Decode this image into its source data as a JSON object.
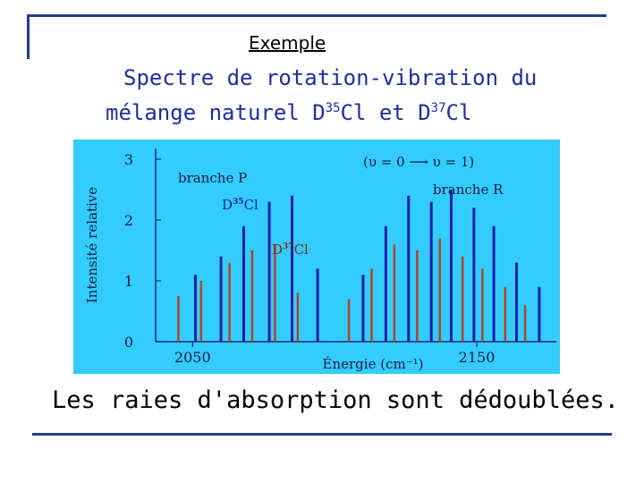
{
  "page": {
    "subtitle": "Exemple",
    "title_line1": "Spectre de rotation-vibration du",
    "title_line2_prefix": "mélange naturel  D",
    "title_iso1": "35",
    "title_line2_mid": "Cl  et  D",
    "title_iso2": "37",
    "title_line2_suffix": "Cl",
    "caption": "Les raies d'absorption sont dédoublées."
  },
  "colors": {
    "background": "#33ccff",
    "d35_lines": "#1a1fa8",
    "d37_lines": "#b04428",
    "axis": "#1a2a70",
    "title": "#1f2f9a",
    "frame": "#1f3d8a"
  },
  "chart_data": {
    "type": "bar",
    "ylabel": "Intensité relative",
    "xlabel": "Énergie (cm⁻¹)",
    "xlim": [
      2037,
      2178
    ],
    "ylim": [
      0,
      3
    ],
    "yticks": [
      "0",
      "1",
      "2",
      "3"
    ],
    "xticks": [
      "2050",
      "2150"
    ],
    "annotation_transition": "(υ = 0 ⟶ υ = 1)",
    "label_branch_p": "branche P",
    "label_branch_r": "branche R",
    "label_d35_base": "D",
    "label_d35_iso": "35",
    "label_d35_elem": "Cl",
    "label_d37_base": "D",
    "label_d37_iso": "37",
    "label_d37_elem": "Cl",
    "series": [
      {
        "name": "D35Cl",
        "x": [
          2051,
          2060,
          2068,
          2077,
          2085,
          2094,
          2110,
          2118,
          2126,
          2134,
          2141,
          2149,
          2156,
          2164,
          2172
        ],
        "values": [
          1.1,
          1.4,
          1.9,
          2.3,
          2.4,
          1.2,
          1.1,
          1.9,
          2.4,
          2.3,
          2.5,
          2.2,
          1.9,
          1.3,
          0.9
        ]
      },
      {
        "name": "D37Cl",
        "x": [
          2045,
          2053,
          2063,
          2071,
          2079,
          2087,
          2105,
          2113,
          2121,
          2129,
          2137,
          2145,
          2152,
          2160,
          2167
        ],
        "values": [
          0.75,
          1.0,
          1.3,
          1.5,
          1.6,
          0.8,
          0.7,
          1.2,
          1.6,
          1.5,
          1.7,
          1.4,
          1.2,
          0.9,
          0.6
        ]
      }
    ]
  }
}
